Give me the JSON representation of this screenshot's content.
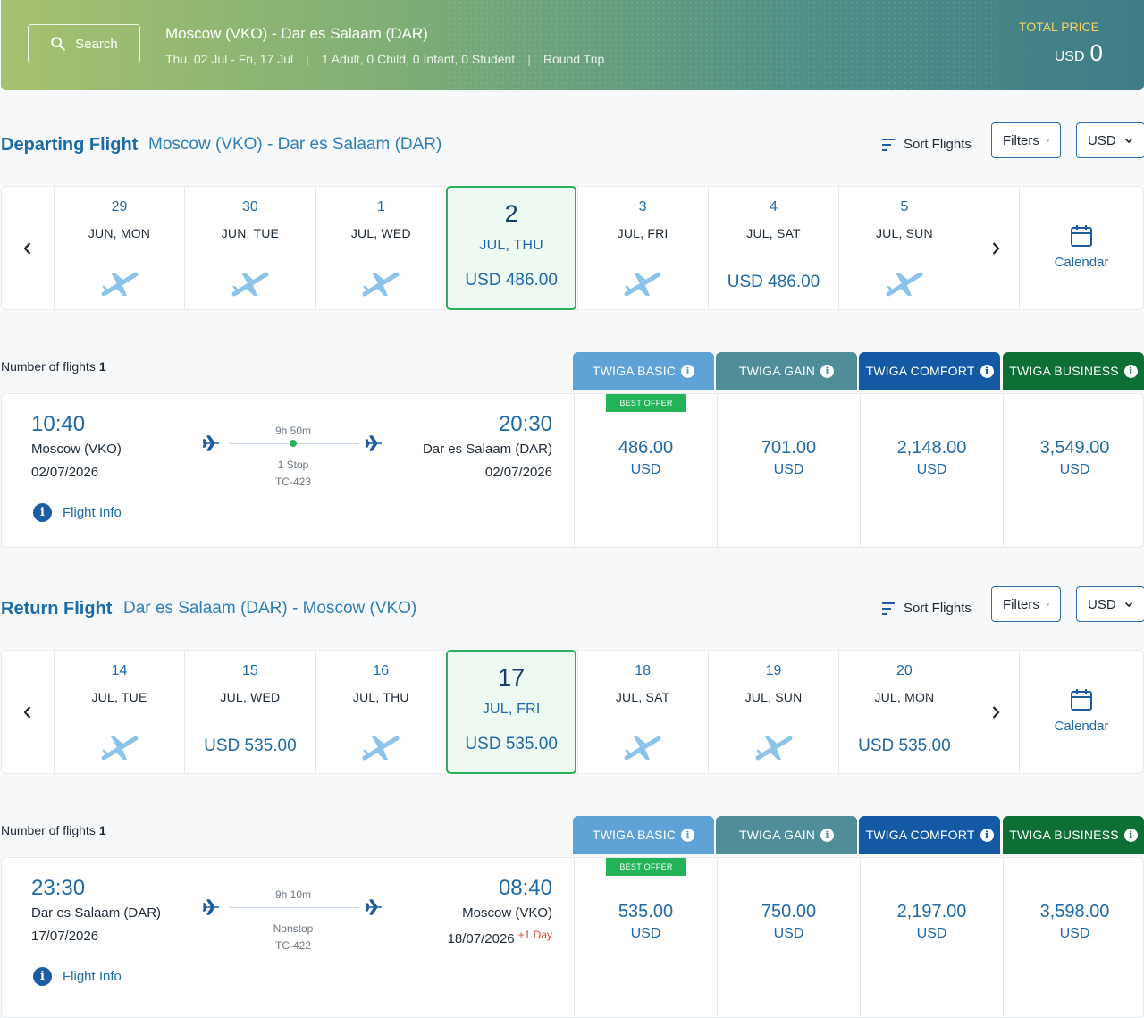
{
  "header": {
    "search_label": "Search",
    "route": "Moscow (VKO) - Dar es Salaam (DAR)",
    "dates": "Thu, 02 Jul - Fri, 17 Jul",
    "passengers": "1 Adult, 0 Child, 0 Infant, 0 Student",
    "trip_type": "Round Trip",
    "separator": "|",
    "total_label": "TOTAL PRICE",
    "total_currency": "USD",
    "total_value": "0"
  },
  "departing": {
    "title": "Departing Flight",
    "route": "Moscow (VKO) - Dar es Salaam (DAR)",
    "sort_label": "Sort Flights",
    "filters_label": "Filters",
    "currency_label": "USD",
    "calendar_label": "Calendar",
    "days": [
      {
        "num": "29",
        "label": "JUN, MON",
        "price": ""
      },
      {
        "num": "30",
        "label": "JUN, TUE",
        "price": ""
      },
      {
        "num": "1",
        "label": "JUL, WED",
        "price": ""
      },
      {
        "num": "2",
        "label": "JUL, THU",
        "price": "USD 486.00",
        "active": true
      },
      {
        "num": "3",
        "label": "JUL, FRI",
        "price": ""
      },
      {
        "num": "4",
        "label": "JUL, SAT",
        "price": "USD 486.00"
      },
      {
        "num": "5",
        "label": "JUL, SUN",
        "price": ""
      }
    ],
    "num_flights_label": "Number of flights",
    "num_flights": "1",
    "fare_tabs": [
      "TWIGA BASIC",
      "TWIGA GAIN",
      "TWIGA COMFORT",
      "TWIGA BUSINESS"
    ],
    "flight": {
      "dep_time": "10:40",
      "dep_city": "Moscow (VKO)",
      "dep_date": "02/07/2026",
      "arr_time": "20:30",
      "arr_city": "Dar es Salaam (DAR)",
      "arr_date": "02/07/2026",
      "duration": "9h 50m",
      "stops": "1 Stop",
      "flight_no": "TC-423",
      "info_label": "Flight Info",
      "best_offer": "BEST OFFER",
      "fares": [
        {
          "amount": "486.00",
          "currency": "USD"
        },
        {
          "amount": "701.00",
          "currency": "USD"
        },
        {
          "amount": "2,148.00",
          "currency": "USD"
        },
        {
          "amount": "3,549.00",
          "currency": "USD"
        }
      ]
    }
  },
  "returning": {
    "title": "Return Flight",
    "route": "Dar es Salaam (DAR) - Moscow (VKO)",
    "sort_label": "Sort Flights",
    "filters_label": "Filters",
    "currency_label": "USD",
    "calendar_label": "Calendar",
    "days": [
      {
        "num": "14",
        "label": "JUL, TUE",
        "price": ""
      },
      {
        "num": "15",
        "label": "JUL, WED",
        "price": "USD 535.00"
      },
      {
        "num": "16",
        "label": "JUL, THU",
        "price": ""
      },
      {
        "num": "17",
        "label": "JUL, FRI",
        "price": "USD 535.00",
        "active": true
      },
      {
        "num": "18",
        "label": "JUL, SAT",
        "price": ""
      },
      {
        "num": "19",
        "label": "JUL, SUN",
        "price": ""
      },
      {
        "num": "20",
        "label": "JUL, MON",
        "price": "USD 535.00"
      }
    ],
    "num_flights_label": "Number of flights",
    "num_flights": "1",
    "fare_tabs": [
      "TWIGA BASIC",
      "TWIGA GAIN",
      "TWIGA COMFORT",
      "TWIGA BUSINESS"
    ],
    "flight": {
      "dep_time": "23:30",
      "dep_city": "Dar es Salaam (DAR)",
      "dep_date": "17/07/2026",
      "arr_time": "08:40",
      "arr_city": "Moscow (VKO)",
      "arr_date": "18/07/2026",
      "plus_day": "+1 Day",
      "duration": "9h 10m",
      "stops": "Nonstop",
      "flight_no": "TC-422",
      "info_label": "Flight Info",
      "best_offer": "BEST OFFER",
      "fares": [
        {
          "amount": "535.00",
          "currency": "USD"
        },
        {
          "amount": "750.00",
          "currency": "USD"
        },
        {
          "amount": "2,197.00",
          "currency": "USD"
        },
        {
          "amount": "3,598.00",
          "currency": "USD"
        }
      ]
    }
  },
  "colors": {
    "accent": "#1f69a6",
    "active_border": "#29b05c",
    "twiga_basic": "#5fa2d6",
    "twiga_gain": "#4f8d98",
    "twiga_comfort": "#1359a4",
    "twiga_business": "#0e6f35"
  }
}
